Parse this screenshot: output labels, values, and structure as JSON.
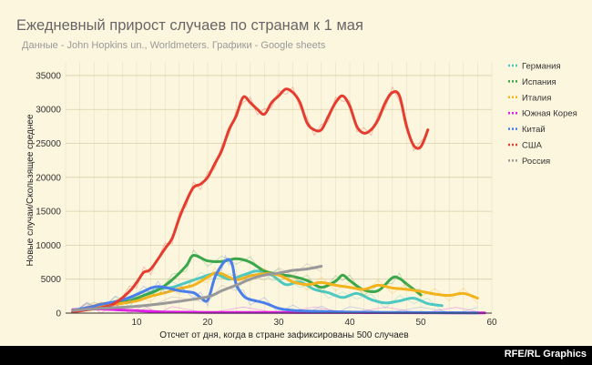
{
  "footer": {
    "credit": "RFE/RL Graphics"
  },
  "chart_data": {
    "type": "line",
    "title": "Ежедневный прирост случаев по странам к 1 мая",
    "subtitle": "Данные - John Hopkins un., Worldmeters. Графики - Google sheets",
    "xlabel": "Отсчет от дня, когда в стране зафиксированы 500 случаев",
    "ylabel": "Новые случаи/Скользящее среднее",
    "xlim": [
      0,
      60
    ],
    "ylim": [
      0,
      37000
    ],
    "xticks": [
      10,
      20,
      30,
      40,
      50,
      60
    ],
    "yticks": [
      0,
      5000,
      10000,
      15000,
      20000,
      25000,
      30000,
      35000
    ],
    "grid": true,
    "legend_position": "right",
    "series": [
      {
        "name": "Германия",
        "color": "#4ec9c1",
        "x": [
          1,
          4,
          7,
          10,
          13,
          15,
          17,
          19,
          21,
          23,
          25,
          27,
          29,
          31,
          33,
          35,
          37,
          39,
          41,
          43,
          45,
          47,
          49,
          51,
          53
        ],
        "values": [
          200,
          800,
          1500,
          2200,
          3500,
          3800,
          4500,
          5200,
          5800,
          5000,
          5600,
          6200,
          5600,
          4200,
          4600,
          3500,
          3000,
          2300,
          2900,
          2000,
          1500,
          1800,
          2200,
          1400,
          1100
        ]
      },
      {
        "name": "Испания",
        "color": "#3aa74b",
        "x": [
          1,
          3,
          5,
          7,
          9,
          11,
          13,
          15,
          17,
          18,
          20,
          22,
          24,
          26,
          28,
          30,
          32,
          34,
          36,
          38,
          39,
          40,
          42,
          44,
          46,
          47,
          48,
          50
        ],
        "values": [
          200,
          700,
          1300,
          1600,
          1800,
          2600,
          3400,
          4900,
          7000,
          8500,
          7700,
          7600,
          8000,
          7500,
          6200,
          5700,
          5400,
          4800,
          3800,
          4700,
          5600,
          4800,
          3400,
          3300,
          5200,
          5100,
          4300,
          2700
        ]
      },
      {
        "name": "Италия",
        "color": "#f2b31c",
        "x": [
          1,
          4,
          7,
          10,
          12,
          14,
          16,
          18,
          20,
          21,
          22,
          24,
          26,
          28,
          30,
          32,
          34,
          36,
          38,
          40,
          42,
          44,
          46,
          48,
          50,
          52,
          54,
          56,
          58
        ],
        "values": [
          400,
          800,
          1300,
          1800,
          2500,
          3000,
          3600,
          4100,
          5300,
          5900,
          5800,
          4900,
          5500,
          5800,
          5600,
          4600,
          4200,
          4500,
          4100,
          3800,
          3500,
          4100,
          3700,
          3500,
          3200,
          2800,
          2600,
          2900,
          2200
        ]
      },
      {
        "name": "Южная Корея",
        "color": "#e01ee8",
        "x": [
          1,
          3,
          5,
          7,
          9,
          11,
          13,
          15,
          20,
          25,
          30,
          35,
          40,
          45,
          50,
          55,
          59
        ],
        "values": [
          500,
          600,
          600,
          500,
          400,
          300,
          200,
          150,
          100,
          90,
          90,
          80,
          80,
          70,
          60,
          40,
          30
        ]
      },
      {
        "name": "Китай",
        "color": "#4a7ee8",
        "x": [
          1,
          3,
          5,
          7,
          9,
          11,
          12,
          13,
          14,
          16,
          18,
          19,
          20,
          21,
          22,
          22.5,
          23,
          23.5,
          24,
          25,
          26,
          28,
          30,
          32,
          34,
          36,
          38,
          40,
          45,
          50,
          55,
          58
        ],
        "values": [
          400,
          800,
          1300,
          1700,
          2300,
          3200,
          3700,
          3900,
          3800,
          3300,
          3000,
          2300,
          1900,
          5200,
          7100,
          7700,
          7900,
          7000,
          4300,
          2600,
          2000,
          1500,
          700,
          400,
          300,
          250,
          200,
          150,
          100,
          80,
          50,
          30
        ]
      },
      {
        "name": "США",
        "color": "#e53c30",
        "x": [
          1,
          5,
          7,
          9,
          10,
          11,
          12,
          14,
          15,
          16,
          17,
          18,
          19,
          20,
          21,
          22,
          23,
          24,
          25,
          26,
          27,
          28,
          29,
          30,
          31,
          32,
          33,
          34,
          35,
          36,
          37,
          38,
          39,
          40,
          41,
          42,
          43,
          44,
          45,
          46,
          47,
          48,
          49,
          50,
          51
        ],
        "values": [
          200,
          800,
          1500,
          3200,
          4500,
          6000,
          6500,
          9500,
          11000,
          14000,
          16500,
          18500,
          19000,
          20000,
          22000,
          24000,
          27000,
          29000,
          31800,
          31000,
          30000,
          29300,
          31000,
          32000,
          33000,
          32500,
          31000,
          28000,
          27000,
          27000,
          29000,
          31000,
          32000,
          30500,
          27500,
          26500,
          27000,
          28500,
          31000,
          32500,
          32000,
          27500,
          24700,
          24500,
          27000
        ]
      },
      {
        "name": "Россия",
        "color": "#999999",
        "x": [
          1,
          5,
          10,
          15,
          20,
          22,
          24,
          26,
          28,
          30,
          32,
          34,
          36
        ],
        "values": [
          400,
          700,
          1000,
          1600,
          2400,
          3300,
          4100,
          5000,
          5600,
          5900,
          6300,
          6500,
          6900
        ]
      }
    ]
  }
}
